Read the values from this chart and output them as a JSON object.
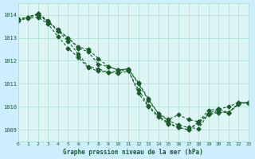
{
  "title": "Graphe pression niveau de la mer (hPa)",
  "bg_color": "#cceeff",
  "plot_bg_color": "#ddf5f5",
  "grid_color": "#aaddcc",
  "line_color": "#1a5c2a",
  "xlim": [
    0,
    23
  ],
  "ylim": [
    1008.5,
    1014.5
  ],
  "yticks": [
    1009,
    1010,
    1011,
    1012,
    1013,
    1014
  ],
  "xticks": [
    0,
    1,
    2,
    3,
    4,
    5,
    6,
    7,
    8,
    9,
    10,
    11,
    12,
    13,
    14,
    15,
    16,
    17,
    18,
    19,
    20,
    21,
    22,
    23
  ],
  "series": [
    [
      1013.8,
      1013.9,
      1014.0,
      1013.7,
      1013.3,
      1013.0,
      1012.6,
      1012.5,
      1012.1,
      1011.75,
      1011.6,
      1011.65,
      1011.0,
      1010.3,
      1009.7,
      1009.4,
      1009.2,
      1009.1,
      1009.05,
      1009.7,
      1009.9,
      1010.0,
      1010.2,
      1010.15
    ],
    [
      1013.8,
      1013.9,
      1014.05,
      1013.7,
      1013.35,
      1013.0,
      1012.55,
      1012.4,
      1011.85,
      1011.75,
      1011.6,
      1011.65,
      1011.05,
      1010.35,
      1009.7,
      1009.45,
      1009.65,
      1009.45,
      1009.35,
      1009.85,
      1009.9,
      1009.75,
      1010.1,
      1010.2
    ],
    [
      1013.8,
      1013.9,
      1014.05,
      1013.75,
      1013.3,
      1012.85,
      1012.3,
      1011.75,
      1011.65,
      1011.5,
      1011.55,
      1011.6,
      1010.6,
      1010.0,
      1009.55,
      1009.25,
      1009.1,
      1009.0,
      1009.3,
      1009.65,
      1009.75,
      1009.75,
      1010.15,
      1010.2
    ],
    [
      1013.75,
      1013.85,
      1013.9,
      1013.6,
      1013.05,
      1012.55,
      1012.15,
      1011.7,
      1011.55,
      1011.5,
      1011.45,
      1011.55,
      1010.75,
      1010.05,
      1009.6,
      1009.3,
      1009.1,
      1009.0,
      1009.35,
      1009.7,
      1009.8,
      1009.75,
      1010.15,
      1010.2
    ]
  ]
}
